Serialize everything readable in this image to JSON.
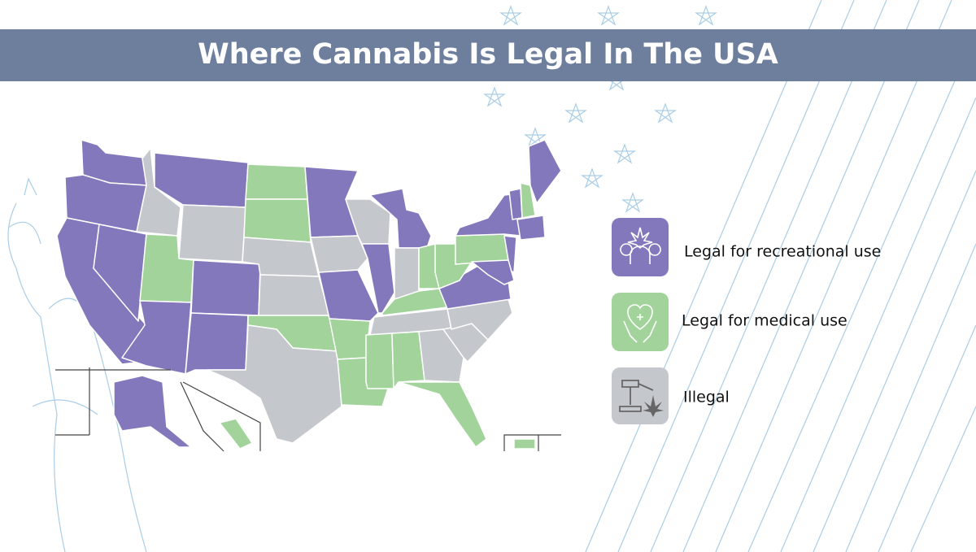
{
  "header": {
    "title": "Where Cannabis Is Legal In The USA"
  },
  "legend": {
    "items": [
      {
        "label": "Legal for recreational use"
      },
      {
        "label": "Legal for medical use"
      },
      {
        "label": "Illegal"
      }
    ]
  }
}
